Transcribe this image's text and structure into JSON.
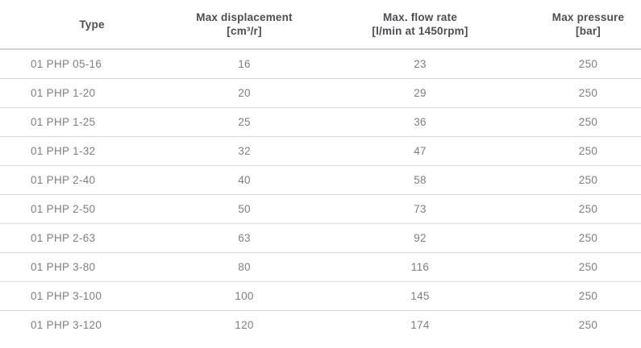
{
  "columns": [
    {
      "id": "type",
      "label_line1": "Type",
      "label_line2": ""
    },
    {
      "id": "displacement",
      "label_line1": "Max displacement",
      "label_line2": "[cm³/r]"
    },
    {
      "id": "flow",
      "label_line1": "Max. flow rate",
      "label_line2": "[l/min at 1450rpm]"
    },
    {
      "id": "pressure",
      "label_line1": "Max pressure",
      "label_line2": "[bar]"
    }
  ],
  "rows": [
    {
      "cells": [
        "01 PHP 05-16",
        "16",
        "23",
        "250"
      ]
    },
    {
      "cells": [
        "01 PHP 1-20",
        "20",
        "29",
        "250"
      ]
    },
    {
      "cells": [
        "01 PHP 1-25",
        "25",
        "36",
        "250"
      ]
    },
    {
      "cells": [
        "01 PHP 1-32",
        "32",
        "47",
        "250"
      ]
    },
    {
      "cells": [
        "01 PHP 2-40",
        "40",
        "58",
        "250"
      ]
    },
    {
      "cells": [
        "01 PHP 2-50",
        "50",
        "73",
        "250"
      ]
    },
    {
      "cells": [
        "01 PHP 2-63",
        "63",
        "92",
        "250"
      ]
    },
    {
      "cells": [
        "01 PHP 3-80",
        "80",
        "116",
        "250"
      ]
    },
    {
      "cells": [
        "01 PHP 3-100",
        "100",
        "145",
        "250"
      ]
    },
    {
      "cells": [
        "01 PHP 3-120",
        "120",
        "174",
        "250"
      ]
    }
  ],
  "colors": {
    "background": "#ffffff",
    "header_text": "#4d4e51",
    "cell_text": "#7e7f83",
    "header_divider": "#d5d5d5",
    "row_divider": "#dadada"
  }
}
